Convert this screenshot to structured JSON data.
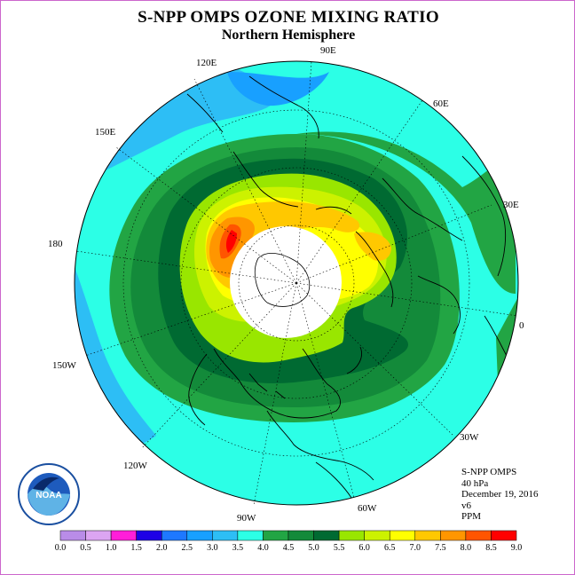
{
  "title": "S-NPP OMPS OZONE MIXING RATIO",
  "subtitle": "Northern Hemisphere",
  "longitude_labels": {
    "e90": "90E",
    "e60": "60E",
    "e30": "30E",
    "zero": "0",
    "w30": "30W",
    "w60": "60W",
    "w90": "90W",
    "w120": "120W",
    "w150": "150W",
    "d180": "180",
    "e150": "150E",
    "e120": "120E"
  },
  "info": {
    "instrument": "S-NPP OMPS",
    "level": "40 hPa",
    "date": "December 19, 2016",
    "version": "v6",
    "units": "PPM"
  },
  "logo": {
    "text": "NOAA",
    "icon": "noaa-logo"
  },
  "colorbar": {
    "ticks": [
      "0.0",
      "0.5",
      "1.0",
      "1.5",
      "2.0",
      "2.5",
      "3.0",
      "3.5",
      "4.0",
      "4.5",
      "5.0",
      "5.5",
      "6.0",
      "6.5",
      "7.0",
      "7.5",
      "8.0",
      "8.5",
      "9.0"
    ],
    "colors": [
      "#b98ce8",
      "#dca5f2",
      "#ff1ed9",
      "#1e00e6",
      "#1e78ff",
      "#18a0ff",
      "#2dbef5",
      "#2cffe6",
      "#22a544",
      "#138a3a",
      "#006a32",
      "#99e600",
      "#ccf200",
      "#ffff00",
      "#ffc800",
      "#ff9600",
      "#ff5500",
      "#ff0000",
      "#8c6450"
    ]
  },
  "map": {
    "projection": "north-polar-stereographic",
    "background": "#2cffe6",
    "no_data_region": "polar-night",
    "ozone_levels_ppm": [
      3.0,
      4.0,
      4.5,
      5.0,
      5.5,
      6.0,
      6.5,
      7.0,
      7.5,
      8.0
    ]
  }
}
